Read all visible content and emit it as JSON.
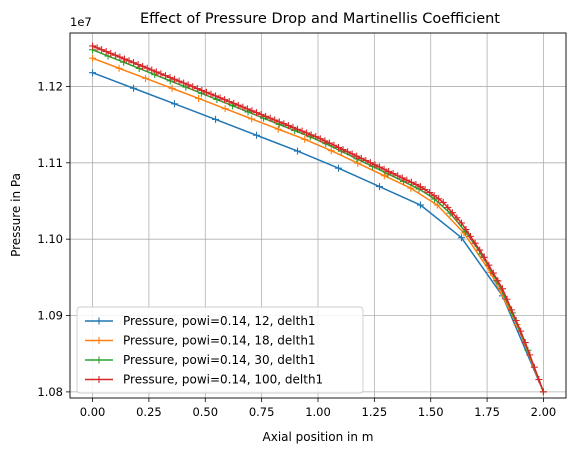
{
  "chart_data": {
    "type": "line",
    "title": "Effect of Pressure Drop and Martinellis Coefficient",
    "xlabel": "Axial position in m",
    "ylabel": "Pressure in Pa",
    "y_offset_label": "1e7",
    "xlim": [
      -0.1,
      2.1
    ],
    "ylim": [
      1.0792,
      1.127
    ],
    "x_ticks": [
      0.0,
      0.25,
      0.5,
      0.75,
      1.0,
      1.25,
      1.5,
      1.75,
      2.0
    ],
    "x_tick_labels": [
      "0.00",
      "0.25",
      "0.50",
      "0.75",
      "1.00",
      "1.25",
      "1.50",
      "1.75",
      "2.00"
    ],
    "y_ticks": [
      1.08,
      1.09,
      1.1,
      1.11,
      1.12
    ],
    "y_tick_labels": [
      "1.08",
      "1.09",
      "1.10",
      "1.11",
      "1.12"
    ],
    "grid": true,
    "legend_position": "lower-left",
    "series": [
      {
        "name": "Pressure, powi=0.14, 12, delth1",
        "color": "#1f77b4",
        "n_markers": 12,
        "x": [
          0.0,
          0.5,
          1.0,
          1.46,
          1.55,
          1.64,
          1.73,
          1.82,
          1.91,
          2.0
        ],
        "y": [
          1.1218,
          1.1162,
          1.1105,
          1.1044,
          1.1024,
          1.1001,
          1.0968,
          1.0925,
          1.0868,
          1.08
        ]
      },
      {
        "name": "Pressure, powi=0.14, 18, delth1",
        "color": "#ff7f0e",
        "n_markers": 18,
        "x": [
          0.0,
          0.5,
          1.0,
          1.46,
          1.55,
          1.64,
          1.73,
          1.82,
          1.91,
          2.0
        ],
        "y": [
          1.1237,
          1.1181,
          1.1124,
          1.106,
          1.104,
          1.1011,
          1.0974,
          1.0929,
          1.087,
          1.08
        ]
      },
      {
        "name": "Pressure, powi=0.14, 30, delth1",
        "color": "#2ca02c",
        "n_markers": 30,
        "x": [
          0.0,
          0.5,
          1.0,
          1.46,
          1.55,
          1.64,
          1.73,
          1.82,
          1.91,
          2.0
        ],
        "y": [
          1.1248,
          1.1189,
          1.113,
          1.1064,
          1.1046,
          1.1016,
          1.0978,
          1.0932,
          1.0871,
          1.08
        ]
      },
      {
        "name": "Pressure, powi=0.14, 100, delth1",
        "color": "#d62728",
        "n_markers": 100,
        "x": [
          0.0,
          0.5,
          1.0,
          1.46,
          1.55,
          1.64,
          1.73,
          1.82,
          1.91,
          2.0
        ],
        "y": [
          1.1253,
          1.1193,
          1.1133,
          1.1068,
          1.105,
          1.102,
          1.098,
          1.0934,
          1.0872,
          1.08
        ]
      }
    ]
  }
}
